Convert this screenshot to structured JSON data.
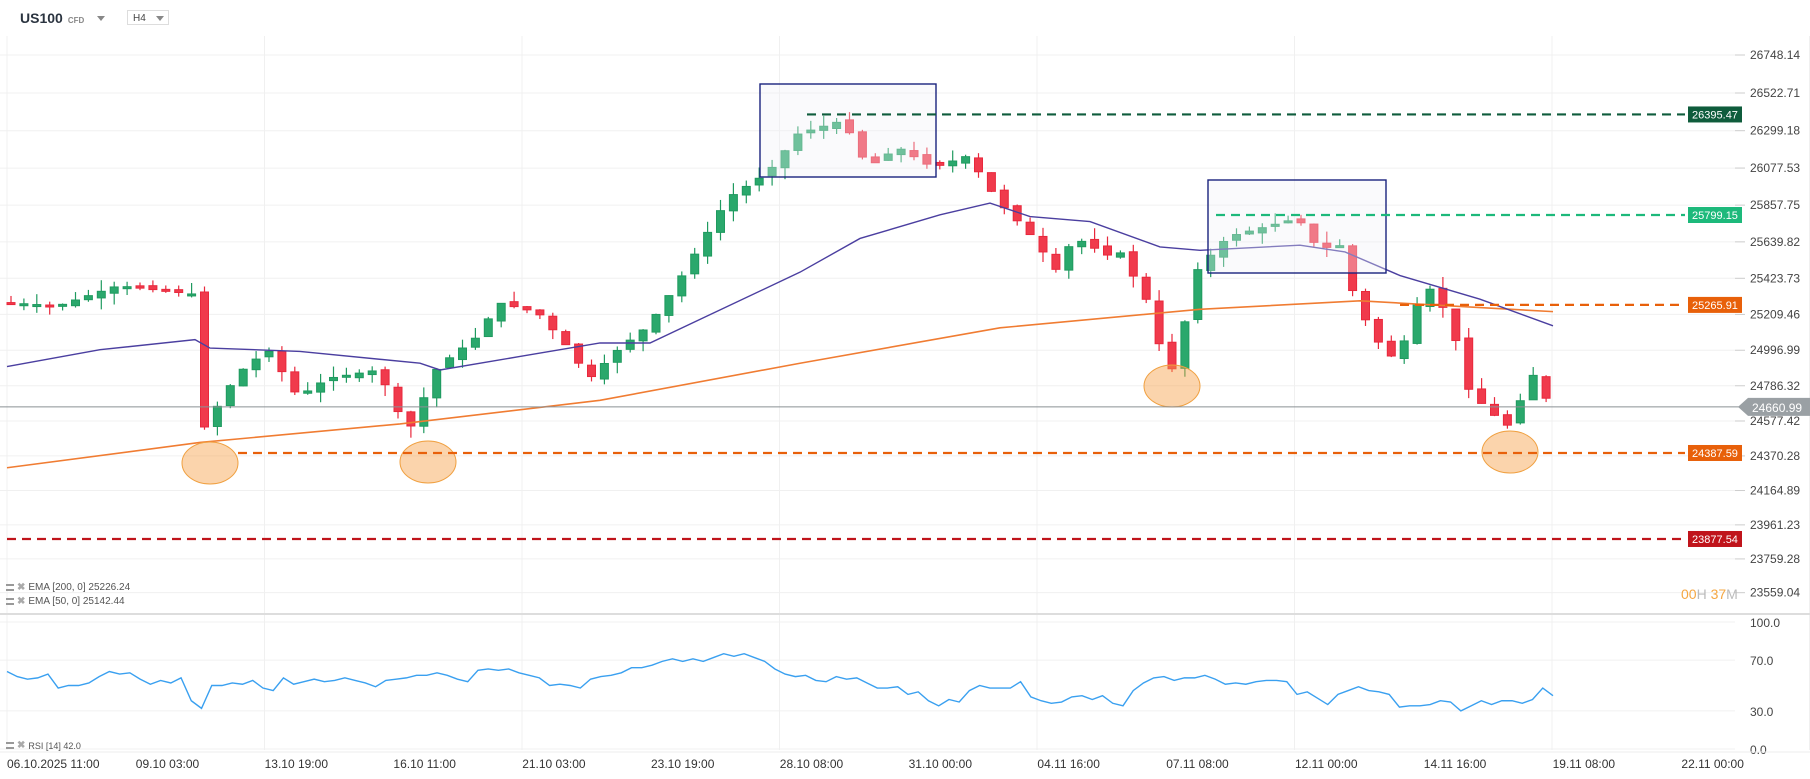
{
  "header": {
    "symbol": "US100",
    "symbol_type": "CFD",
    "timeframe": "H4"
  },
  "indicators": {
    "ema200": {
      "label": "EMA [200, 0] 25226.24",
      "color": "#f07c32"
    },
    "ema50": {
      "label": "EMA [50, 0] 25142.44",
      "color": "#4b3fa0"
    },
    "rsi": {
      "label": "RSI [14] 42.0",
      "color": "#3aa0f0"
    }
  },
  "countdown": {
    "hours": "00",
    "h": "H",
    "minutes": "37",
    "m": "M"
  },
  "price_axis": [
    "26748.14",
    "26522.71",
    "26299.18",
    "26077.53",
    "25857.75",
    "25639.82",
    "25423.73",
    "25209.46",
    "24996.99",
    "24786.32",
    "24577.42",
    "24370.28",
    "24164.89",
    "23961.23",
    "23759.28",
    "23559.04"
  ],
  "rsi_axis": [
    "100.0",
    "70.0",
    "30.0",
    "0.0"
  ],
  "time_axis": [
    "06.10.2025  11:00",
    "09.10  03:00",
    "13.10  19:00",
    "16.10  11:00",
    "21.10  03:00",
    "23.10  19:00",
    "28.10  08:00",
    "31.10  00:00",
    "04.11  16:00",
    "07.11  08:00",
    "12.11  00:00",
    "14.11  16:00",
    "19.11  08:00",
    "22.11  00:00"
  ],
  "levels": [
    {
      "price": "26395.47",
      "color": "#0f5c3c"
    },
    {
      "price": "25799.15",
      "color": "#1db97b"
    },
    {
      "price": "25265.91",
      "color": "#e8600a"
    },
    {
      "price": "24387.59",
      "color": "#e8600a"
    },
    {
      "price": "23877.54",
      "color": "#c0141b"
    }
  ],
  "current_price": "24660.99",
  "chart_data": {
    "type": "candlestick",
    "title": "US100 CFD H4",
    "xlabel": "",
    "ylabel": "",
    "ylim": [
      23559.04,
      26748.14
    ],
    "rsi_ylim": [
      0,
      100
    ],
    "x": [
      "06.10.2025 11:00",
      "09.10 03:00",
      "13.10 19:00",
      "16.10 11:00",
      "21.10 03:00",
      "23.10 19:00",
      "28.10 08:00",
      "31.10 00:00",
      "04.11 16:00",
      "07.11 08:00",
      "12.11 00:00",
      "14.11 16:00",
      "19.11 08:00"
    ],
    "close_at_x_approx": [
      25150,
      25330,
      24950,
      24980,
      24880,
      25520,
      26120,
      26180,
      25700,
      24980,
      25640,
      25250,
      24661
    ],
    "current_price": 24660.99,
    "horizontal_levels": [
      26395.47,
      25799.15,
      25265.91,
      24387.59,
      23877.54
    ],
    "ema200_last": 25226.24,
    "ema50_last": 25142.44,
    "rsi_last": 42.0,
    "rsi_values_approx": [
      61,
      57,
      55,
      56,
      59,
      48,
      50,
      50,
      52,
      57,
      61,
      59,
      60,
      55,
      51,
      54,
      52,
      56,
      38,
      32,
      50,
      50,
      52,
      51,
      54,
      48,
      46,
      56,
      51,
      53,
      55,
      53,
      54,
      56,
      54,
      52,
      49,
      54,
      55,
      56,
      58,
      58,
      60,
      58,
      55,
      53,
      62,
      63,
      62,
      63,
      60,
      58,
      56,
      50,
      51,
      50,
      48,
      55,
      57,
      58,
      60,
      64,
      64,
      66,
      69,
      71,
      69,
      71,
      69,
      72,
      75,
      73,
      75,
      72,
      69,
      63,
      59,
      57,
      58,
      54,
      53,
      57,
      55,
      56,
      52,
      48,
      48,
      49,
      43,
      45,
      38,
      34,
      39,
      37,
      46,
      50,
      48,
      48,
      48,
      53,
      41,
      38,
      36,
      37,
      41,
      42,
      39,
      42,
      36,
      34,
      46,
      52,
      56,
      57,
      54,
      56,
      56,
      58,
      55,
      51,
      52,
      51,
      53,
      54,
      54,
      53,
      43,
      45,
      40,
      35,
      43,
      46,
      49,
      46,
      45,
      43,
      33,
      34,
      34,
      35,
      38,
      37,
      30,
      34,
      38,
      35,
      38,
      38,
      36,
      39,
      48,
      42
    ],
    "annotations": [
      "range box 28.10-31.10 top",
      "range box 07.11-13.11",
      "support ellipses at 24387.59"
    ]
  }
}
